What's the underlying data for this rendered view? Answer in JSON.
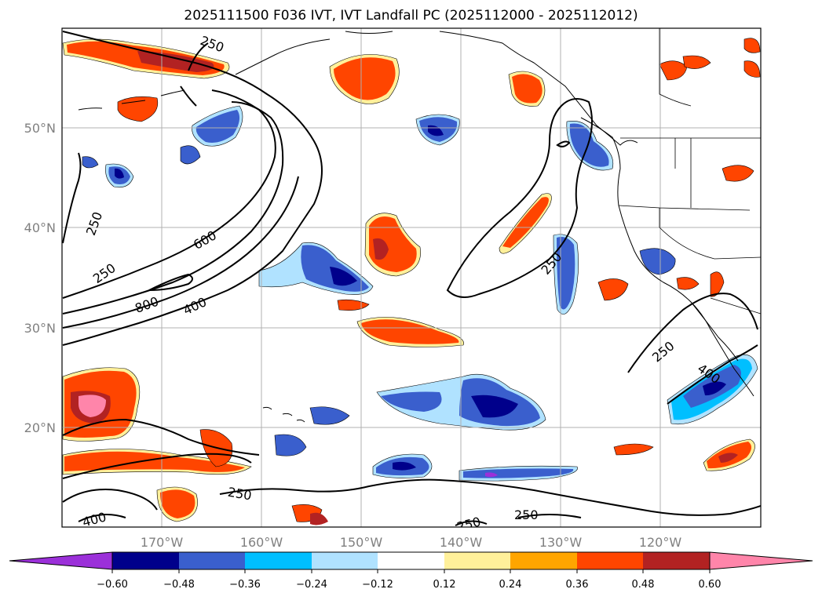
{
  "title": "2025111500 F036 IVT, IVT Landfall PC (2025112000 - 2025112012)",
  "map": {
    "lat_labels": [
      "50°N",
      "40°N",
      "30°N",
      "20°N"
    ],
    "lon_labels": [
      "170°W",
      "160°W",
      "150°W",
      "140°W",
      "130°W",
      "120°W"
    ],
    "contour_labels": [
      "250",
      "250",
      "250",
      "600",
      "800",
      "400",
      "250",
      "250",
      "400",
      "250",
      "250",
      "400",
      "250"
    ]
  },
  "colorbar": {
    "tick_labels": [
      "−0.60",
      "−0.48",
      "−0.36",
      "−0.24",
      "−0.12",
      "0.12",
      "0.24",
      "0.36",
      "0.48",
      "0.60"
    ],
    "colors": [
      "#9b30d9",
      "#00008b",
      "#3a5fcd",
      "#00bfff",
      "#b0e2ff",
      "#ffffff",
      "#fff09a",
      "#ffa500",
      "#ff4500",
      "#b22222",
      "#ff85aa"
    ]
  },
  "palette": {
    "neg_dark": "#00008b",
    "neg_mid": "#3a5fcd",
    "neg_light": "#00bfff",
    "neg_pale": "#b0e2ff",
    "pos_pale": "#fff09a",
    "pos_mid": "#ffa500",
    "pos_strong": "#ff4500",
    "pos_dark": "#b22222",
    "pos_max": "#ff85aa"
  }
}
